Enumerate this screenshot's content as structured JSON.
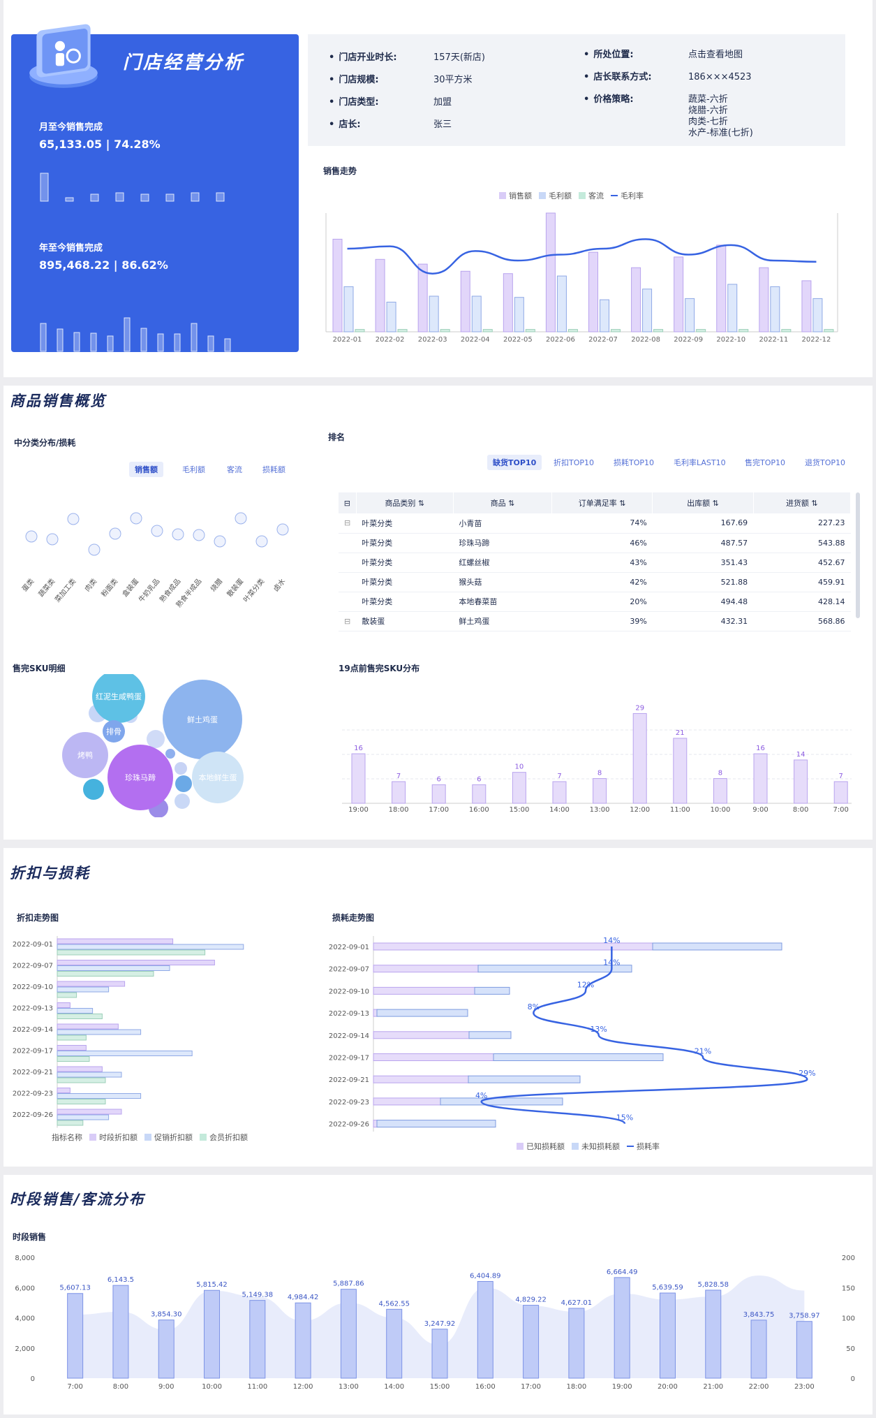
{
  "header": {
    "title": "门店经营分析",
    "mtd_label": "月至今销售完成",
    "mtd_value": "65,133.05 | 74.28%",
    "ytd_label": "年至今销售完成",
    "ytd_value": "895,468.22 | 86.62%"
  },
  "store_info": {
    "rows": [
      {
        "k": "门店开业时长:",
        "v": "157天(新店)"
      },
      {
        "k": "门店规模:",
        "v": "30平方米"
      },
      {
        "k": "门店类型:",
        "v": "加盟"
      },
      {
        "k": "店长:",
        "v": "张三"
      },
      {
        "k": "所处位置:",
        "v": "点击查看地图"
      },
      {
        "k": "店长联系方式:",
        "v": "186×××4523"
      },
      {
        "k": "价格策略:",
        "v": "蔬菜-六折"
      }
    ],
    "price_extra": [
      "烧腊-六折",
      "肉类-七折",
      "水产-标准(七折)"
    ]
  },
  "sections": {
    "s1": "商品销售概览",
    "s2": "折扣与损耗",
    "s3": "时段销售/客流分布"
  },
  "subs": {
    "trend": "销售走势",
    "mid": "中分类分布/损耗",
    "rank": "排名",
    "sku": "售完SKU明细",
    "sku19": "19点前售完SKU分布",
    "disc": "折扣走势图",
    "loss": "损耗走势图",
    "hour": "时段销售"
  },
  "mid_tabs": [
    "销售额",
    "毛利额",
    "客流",
    "损耗额"
  ],
  "rank_tabs": [
    "缺货TOP10",
    "折扣TOP10",
    "损耗TOP10",
    "毛利率LAST10",
    "售完TOP10",
    "退货TOP10"
  ],
  "table": {
    "headers": [
      "商品类别",
      "商品",
      "订单满足率",
      "出库额",
      "进货额"
    ],
    "rows": [
      [
        "叶菜分类",
        "小青苗",
        "74%",
        "167.69",
        "227.23"
      ],
      [
        "叶菜分类",
        "珍珠马蹄",
        "46%",
        "487.57",
        "543.88"
      ],
      [
        "叶菜分类",
        "红螺丝椒",
        "43%",
        "351.43",
        "452.67"
      ],
      [
        "叶菜分类",
        "猴头菇",
        "42%",
        "521.88",
        "459.91"
      ],
      [
        "叶菜分类",
        "本地春菜苗",
        "20%",
        "494.48",
        "428.14"
      ],
      [
        "散装蛋",
        "鲜土鸡蛋",
        "39%",
        "432.31",
        "568.86"
      ]
    ]
  },
  "colors": {
    "accent": "#3763e2",
    "purple": "#d9ccf7",
    "blue": "#c8d8f7",
    "green": "#c4eadb"
  },
  "chart_data": [
    {
      "type": "bar",
      "id": "trend",
      "categories": [
        "2022-01",
        "2022-02",
        "2022-03",
        "2022-04",
        "2022-05",
        "2022-06",
        "2022-07",
        "2022-08",
        "2022-09",
        "2022-10",
        "2022-11",
        "2022-12"
      ],
      "legend": [
        "销售额",
        "毛利额",
        "客流",
        "毛利率"
      ],
      "series": [
        {
          "name": "销售额",
          "values": [
            78,
            61,
            57,
            51,
            49,
            100,
            67,
            54,
            63,
            73,
            54,
            43
          ]
        },
        {
          "name": "毛利额",
          "values": [
            38,
            25,
            30,
            30,
            29,
            47,
            27,
            36,
            28,
            40,
            38,
            28
          ]
        },
        {
          "name": "客流",
          "values": [
            2,
            2,
            2,
            2,
            2,
            2,
            2,
            2,
            2,
            2,
            2,
            2
          ]
        },
        {
          "name": "毛利率",
          "values": [
            70,
            72,
            49,
            68,
            60,
            65,
            70,
            78,
            65,
            73,
            60,
            59
          ]
        }
      ]
    },
    {
      "type": "scatter",
      "id": "mid",
      "categories": [
        "蛋类",
        "蔬菜类",
        "菜加工类",
        "肉类",
        "粉面类",
        "盒装蛋",
        "牛奶乳品",
        "熟食成品",
        "熟食半成品",
        "烧腊",
        "散装蛋",
        "叶菜分类",
        "卤水"
      ],
      "values": [
        52,
        48,
        77,
        33,
        56,
        78,
        60,
        55,
        54,
        45,
        78,
        45,
        62
      ]
    },
    {
      "type": "bubble",
      "id": "sku",
      "labels": [
        "红泥生咸鸭蛋",
        "鲜土鸡蛋",
        "排骨",
        "烤鸭",
        "珍珠马蹄",
        "本地鲜生蛋"
      ]
    },
    {
      "type": "bar",
      "id": "sku19",
      "categories": [
        "19:00",
        "18:00",
        "17:00",
        "16:00",
        "15:00",
        "14:00",
        "13:00",
        "12:00",
        "11:00",
        "10:00",
        "9:00",
        "8:00",
        "7:00"
      ],
      "values": [
        16,
        7,
        6,
        6,
        10,
        7,
        8,
        29,
        21,
        8,
        16,
        14,
        7
      ]
    },
    {
      "type": "bar",
      "id": "disc",
      "orientation": "horizontal",
      "categories": [
        "2022-09-01",
        "2022-09-07",
        "2022-09-10",
        "2022-09-13",
        "2022-09-14",
        "2022-09-17",
        "2022-09-21",
        "2022-09-23",
        "2022-09-26"
      ],
      "legend_title": "指标名称",
      "legend": [
        "时段折扣额",
        "促销折扣额",
        "会员折扣额"
      ],
      "series": [
        {
          "name": "时段折扣额",
          "values": [
            180,
            245,
            105,
            20,
            95,
            45,
            70,
            20,
            100
          ]
        },
        {
          "name": "促销折扣额",
          "values": [
            290,
            175,
            80,
            55,
            130,
            210,
            100,
            130,
            80
          ]
        },
        {
          "name": "会员折扣额",
          "values": [
            230,
            150,
            30,
            70,
            45,
            50,
            75,
            75,
            40
          ]
        }
      ]
    },
    {
      "type": "bar",
      "id": "loss",
      "orientation": "horizontal",
      "categories": [
        "2022-09-01",
        "2022-09-07",
        "2022-09-10",
        "2022-09-13",
        "2022-09-14",
        "2022-09-17",
        "2022-09-21",
        "2022-09-23",
        "2022-09-26"
      ],
      "legend": [
        "已知损耗额",
        "未知损耗额",
        "损耗率"
      ],
      "series": [
        {
          "name": "已知损耗额",
          "values": [
            400,
            150,
            145,
            5,
            137,
            172,
            136,
            96,
            5
          ]
        },
        {
          "name": "未知损耗额",
          "values": [
            185,
            220,
            50,
            130,
            60,
            243,
            160,
            175,
            170
          ]
        },
        {
          "name": "损耗率",
          "values": [
            14,
            14,
            12,
            8,
            13,
            21,
            29,
            4,
            15
          ],
          "labels": [
            "14%",
            "14%",
            "12%",
            "8%",
            "13%",
            "21%",
            "29%",
            "4%",
            "15%"
          ]
        }
      ]
    },
    {
      "type": "bar",
      "id": "hour",
      "categories": [
        "7:00",
        "8:00",
        "9:00",
        "10:00",
        "11:00",
        "12:00",
        "13:00",
        "14:00",
        "15:00",
        "16:00",
        "17:00",
        "18:00",
        "19:00",
        "20:00",
        "21:00",
        "22:00",
        "23:00"
      ],
      "values": [
        5607.13,
        6143.5,
        3854.3,
        5815.42,
        5149.38,
        4984.42,
        5887.86,
        4562.55,
        3247.92,
        6404.89,
        4829.22,
        4627.01,
        6664.49,
        5639.59,
        5828.58,
        3843.75,
        3758.97
      ],
      "labels": [
        "5,607.13",
        "6,143.5",
        "3,854.30",
        "5,815.42",
        "5,149.38",
        "4,984.42",
        "5,887.86",
        "4,562.55",
        "3,247.92",
        "6,404.89",
        "4,829.22",
        "4,627.01",
        "6,664.49",
        "5,639.59",
        "5,828.58",
        "3,843.75",
        "3,758.97"
      ],
      "traffic": [
        105,
        110,
        80,
        145,
        135,
        95,
        125,
        100,
        55,
        150,
        120,
        110,
        140,
        130,
        135,
        170,
        145
      ],
      "ylim": [
        0,
        8000
      ],
      "yticks": [
        "0",
        "2,000",
        "4,000",
        "6,000",
        "8,000"
      ],
      "y2ticks": [
        "0",
        "50",
        "100",
        "150",
        "200"
      ]
    }
  ]
}
